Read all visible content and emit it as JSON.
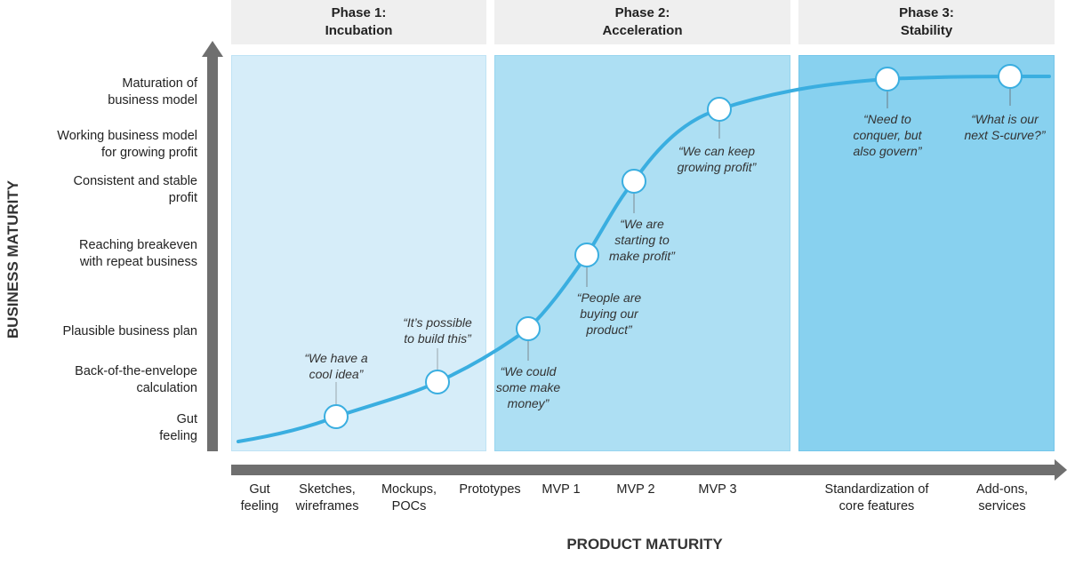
{
  "phases": [
    {
      "line1": "Phase 1:",
      "line2": "Incubation"
    },
    {
      "line1": "Phase 2:",
      "line2": "Acceleration"
    },
    {
      "line1": "Phase 3:",
      "line2": "Stability"
    }
  ],
  "y_axis": {
    "title": "BUSINESS MATURITY",
    "levels": [
      {
        "line1": "Maturation of",
        "line2": "business model"
      },
      {
        "line1": "Working business model",
        "line2": "for growing profit"
      },
      {
        "line1": "Consistent and stable",
        "line2": "profit"
      },
      {
        "line1": "Reaching breakeven",
        "line2": "with repeat business"
      },
      {
        "line1": "Plausible business plan",
        "line2": ""
      },
      {
        "line1": "Back-of-the-envelope",
        "line2": "calculation"
      },
      {
        "line1": "Gut",
        "line2": "feeling"
      }
    ]
  },
  "x_axis": {
    "title": "PRODUCT MATURITY",
    "stages": [
      {
        "line1": "Gut",
        "line2": "feeling"
      },
      {
        "line1": "Sketches,",
        "line2": "wireframes"
      },
      {
        "line1": "Mockups,",
        "line2": "POCs"
      },
      {
        "line1": "Prototypes",
        "line2": ""
      },
      {
        "line1": "MVP 1",
        "line2": ""
      },
      {
        "line1": "MVP 2",
        "line2": ""
      },
      {
        "line1": "MVP 3",
        "line2": ""
      },
      {
        "line1": "Standardization of",
        "line2": "core features"
      },
      {
        "line1": "Add-ons,",
        "line2": "services"
      }
    ]
  },
  "milestones": [
    {
      "lines": [
        "“We have a",
        "cool idea”"
      ]
    },
    {
      "lines": [
        "“It’s possible",
        "to build this”"
      ]
    },
    {
      "lines": [
        "“We could",
        "some make",
        "money”"
      ]
    },
    {
      "lines": [
        "“People are",
        "buying our",
        "product”"
      ]
    },
    {
      "lines": [
        "“We are",
        "starting to",
        "make profit”"
      ]
    },
    {
      "lines": [
        "“We can keep",
        "growing profit”"
      ]
    },
    {
      "lines": [
        "“Need to",
        "conquer, but",
        "also govern”"
      ]
    },
    {
      "lines": [
        "“What is our",
        "next S-curve?”"
      ]
    }
  ],
  "colors": {
    "phase1": "#d6edf9",
    "phase2": "#addff3",
    "phase3": "#88d1ef",
    "curve": "#3aaee0",
    "axis": "#6f6f6f",
    "header": "#efefef"
  }
}
